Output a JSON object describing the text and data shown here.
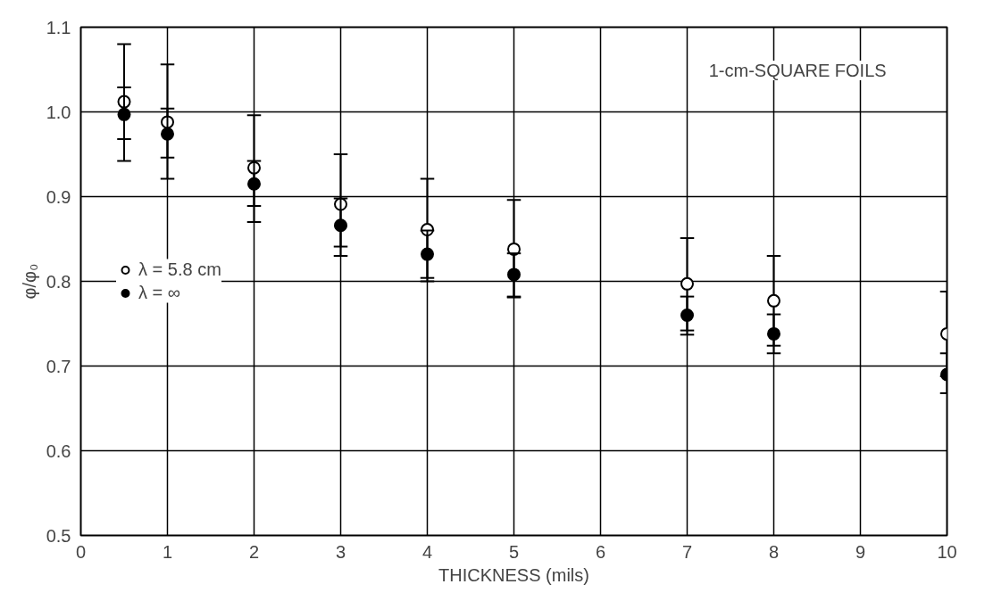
{
  "chart_data": {
    "type": "scatter",
    "xlabel": "THICKNESS (mils)",
    "ylabel": "φ/φ₀",
    "annotations": [
      "1-cm-SQUARE FOILS"
    ],
    "series": [
      {
        "name": "λ = 5.8 cm",
        "color": "#000000",
        "x": [
          0.5,
          1,
          2,
          3,
          4,
          5,
          7,
          8,
          10
        ],
        "values": [
          1.012,
          0.988,
          0.934,
          0.891,
          0.861,
          0.838,
          0.797,
          0.777,
          0.738
        ],
        "errors": [
          [
            0.942,
            1.08
          ],
          [
            0.921,
            1.056
          ],
          [
            0.87,
            0.996
          ],
          [
            0.83,
            0.95
          ],
          [
            0.8,
            0.921
          ],
          [
            0.781,
            0.896
          ],
          [
            0.742,
            0.851
          ],
          [
            0.724,
            0.83
          ],
          [
            0.688,
            0.788
          ]
        ]
      },
      {
        "name": "λ = ∞",
        "color": "#000000",
        "x": [
          0.5,
          1,
          2,
          3,
          4,
          5,
          7,
          8,
          10
        ],
        "values": [
          0.997,
          0.974,
          0.915,
          0.866,
          0.832,
          0.808,
          0.76,
          0.738,
          0.69
        ],
        "errors": [
          [
            0.968,
            1.029
          ],
          [
            0.946,
            1.004
          ],
          [
            0.889,
            0.942
          ],
          [
            0.841,
            0.898
          ],
          [
            0.804,
            0.86
          ],
          [
            0.782,
            0.833
          ],
          [
            0.737,
            0.782
          ],
          [
            0.715,
            0.761
          ],
          [
            0.668,
            0.715
          ]
        ]
      }
    ],
    "xlim": [
      0,
      10
    ],
    "ylim": [
      0.5,
      1.1
    ],
    "xticks": [
      0,
      1,
      2,
      3,
      4,
      5,
      6,
      7,
      8,
      9,
      10
    ],
    "yticks": [
      0.5,
      0.6,
      0.7,
      0.8,
      0.9,
      {
        "value": 1.0,
        "label": "1.0"
      },
      1.1
    ],
    "grid": true,
    "legend": "left",
    "marker": "circle"
  }
}
